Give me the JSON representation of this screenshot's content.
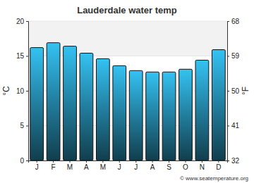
{
  "chart_data": {
    "type": "bar",
    "title": "Lauderdale water temp",
    "categories": [
      "J",
      "F",
      "M",
      "A",
      "M",
      "J",
      "J",
      "A",
      "S",
      "O",
      "N",
      "D"
    ],
    "values": [
      16.2,
      16.9,
      16.4,
      15.4,
      14.6,
      13.6,
      12.9,
      12.7,
      12.7,
      13.1,
      14.4,
      15.9
    ],
    "color": "#34c2f2",
    "y_label": "°C",
    "y2_label": "°F",
    "ylim": [
      0,
      20
    ],
    "yticks": [
      0,
      5,
      10,
      15,
      20
    ],
    "y2lim": [
      32,
      68
    ],
    "y2ticks": [
      32,
      41,
      50,
      59,
      68
    ],
    "grid": true,
    "annotations": [
      "© www.seatemperature.org"
    ]
  }
}
